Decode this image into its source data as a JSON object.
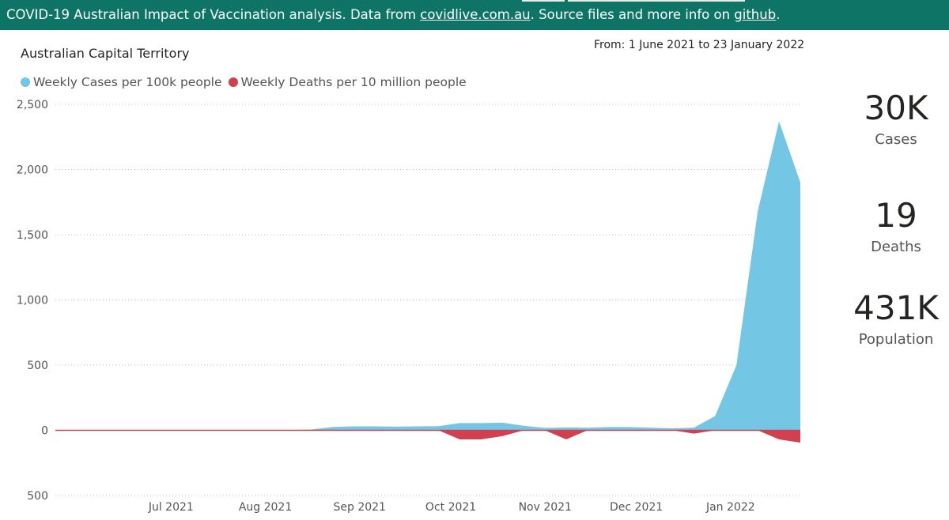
{
  "banner": {
    "prefix": "COVID-19 Australian Impact of Vaccination analysis. Data from ",
    "link1": "covidlive.com.au",
    "middle": ". Source files and more info on ",
    "link2": "github",
    "suffix": "."
  },
  "chart_data": {
    "type": "area",
    "title": "Australian Capital Territory",
    "date_range": "From: 1 June 2021 to 23 January 2022",
    "xlabel": "",
    "ylabel": "",
    "ylim": [
      -500,
      2500
    ],
    "y_ticks": [
      2500,
      2000,
      1500,
      1000,
      500,
      0,
      -500
    ],
    "y_tick_labels": [
      "2,500",
      "2,000",
      "1,500",
      "1,000",
      "500",
      "0",
      "500"
    ],
    "x_ticks": [
      "Jul 2021",
      "Aug 2021",
      "Sep 2021",
      "Oct 2021",
      "Nov 2021",
      "Dec 2021",
      "Jan 2022"
    ],
    "grid": true,
    "legend_position": "top-left",
    "series": [
      {
        "name": "Weekly Cases per 100k people",
        "color": "#74c6e5",
        "points": [
          [
            "2021-06-01",
            0
          ],
          [
            "2021-08-10",
            0
          ],
          [
            "2021-08-17",
            2
          ],
          [
            "2021-08-24",
            5
          ],
          [
            "2021-08-31",
            25
          ],
          [
            "2021-09-07",
            30
          ],
          [
            "2021-09-14",
            30
          ],
          [
            "2021-09-21",
            28
          ],
          [
            "2021-09-28",
            30
          ],
          [
            "2021-10-05",
            32
          ],
          [
            "2021-10-12",
            55
          ],
          [
            "2021-10-19",
            55
          ],
          [
            "2021-10-26",
            58
          ],
          [
            "2021-11-02",
            35
          ],
          [
            "2021-11-09",
            18
          ],
          [
            "2021-11-16",
            22
          ],
          [
            "2021-11-23",
            20
          ],
          [
            "2021-11-30",
            25
          ],
          [
            "2021-12-07",
            25
          ],
          [
            "2021-12-14",
            20
          ],
          [
            "2021-12-21",
            15
          ],
          [
            "2021-12-28",
            20
          ],
          [
            "2022-01-04",
            110
          ],
          [
            "2022-01-11",
            500
          ],
          [
            "2022-01-18",
            1680
          ],
          [
            "2022-01-25",
            2370
          ],
          [
            "2022-02-01",
            1900
          ]
        ]
      },
      {
        "name": "Weekly Deaths per 10 million people",
        "color": "#d1404e",
        "points": [
          [
            "2021-06-01",
            0
          ],
          [
            "2021-10-05",
            0
          ],
          [
            "2021-10-12",
            -70
          ],
          [
            "2021-10-19",
            -70
          ],
          [
            "2021-10-26",
            -45
          ],
          [
            "2021-11-02",
            0
          ],
          [
            "2021-11-09",
            0
          ],
          [
            "2021-11-16",
            -70
          ],
          [
            "2021-11-23",
            0
          ],
          [
            "2021-12-21",
            0
          ],
          [
            "2021-12-28",
            -25
          ],
          [
            "2022-01-04",
            0
          ],
          [
            "2022-01-18",
            0
          ],
          [
            "2022-01-25",
            -70
          ],
          [
            "2022-02-01",
            -95
          ]
        ]
      }
    ]
  },
  "kpis": [
    {
      "value": "30K",
      "label": "Cases"
    },
    {
      "value": "19",
      "label": "Deaths"
    },
    {
      "value": "431K",
      "label": "Population"
    }
  ]
}
